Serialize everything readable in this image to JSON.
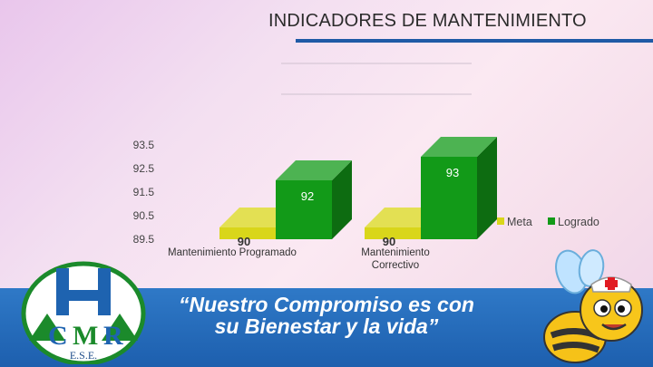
{
  "header": {
    "title": "INDICADORES DE MANTENIMIENTO"
  },
  "colors": {
    "meta": "#d9d61a",
    "logrado": "#129a18",
    "band": "#1f64b2",
    "rule": "#1f5aa6"
  },
  "chart_data": {
    "type": "bar",
    "categories": [
      "Mantenimiento Programado",
      "Mantenimiento Correctivo"
    ],
    "category_lines": [
      [
        "Mantenimiento Programado"
      ],
      [
        "Mantenimiento",
        "Correctivo"
      ]
    ],
    "series": [
      {
        "name": "Meta",
        "values": [
          90,
          90
        ]
      },
      {
        "name": "Logrado",
        "values": [
          92,
          93
        ]
      }
    ],
    "y_ticks": [
      "93.5",
      "92.5",
      "91.5",
      "90.5",
      "89.5"
    ],
    "ylim": [
      89.5,
      93.5
    ],
    "legend": "right",
    "grid": false
  },
  "footer": {
    "slogan_line1": "“Nuestro Compromiso es con",
    "slogan_line2": "su Bienestar y la vida”",
    "logo_text": "E.S.E."
  },
  "icons": [
    "hospital-logo",
    "bee-mascot-icon"
  ]
}
